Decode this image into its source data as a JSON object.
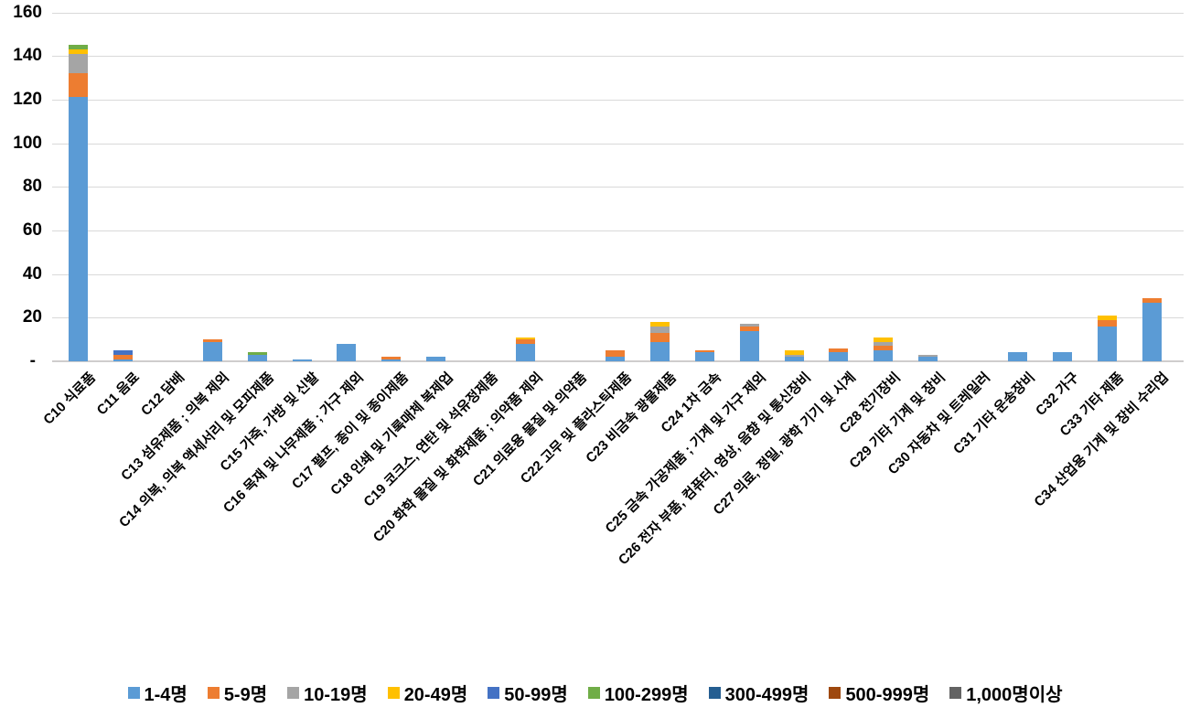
{
  "chart_data": {
    "type": "bar",
    "stacked": true,
    "title": "",
    "xlabel": "",
    "ylabel": "",
    "ylim": [
      0,
      160
    ],
    "grid": true,
    "legend_position": "bottom",
    "background_color": "#FFFFFF",
    "gridline_color": "#D9D9D9",
    "y_axis_ticks": [
      {
        "label": "160",
        "value": 160
      },
      {
        "label": "140",
        "value": 140
      },
      {
        "label": "120",
        "value": 120
      },
      {
        "label": "100",
        "value": 100
      },
      {
        "label": "80",
        "value": 80
      },
      {
        "label": "60",
        "value": 60
      },
      {
        "label": "40",
        "value": 40
      },
      {
        "label": "20",
        "value": 20
      },
      {
        "label": "-",
        "value": 0
      }
    ],
    "categories": [
      "C10 식료품",
      "C11 음료",
      "C12 담배",
      "C13 섬유제품 ; 의복 제외",
      "C14 의복, 의복 액세서리 및 모피제품",
      "C15 가죽, 가방 및 신발",
      "C16 목재 및 나무제품 ; 가구 제외",
      "C17 펄프, 종이 및 종이제품",
      "C18 인쇄 및 기록매체 복제업",
      "C19 코크스, 연탄 및 석유정제품",
      "C20 화학 물질 및 화학제품 ; 의약품 제외",
      "C21 의료용 물질 및 의약품",
      "C22 고무 및 플라스틱제품",
      "C23 비금속 광물제품",
      "C24 1차 금속",
      "C25 금속 가공제품 ; 기계 및 가구 제외",
      "C26 전자 부품, 컴퓨터, 영상, 음향 및 통신장비",
      "C27 의료, 정밀, 광학 기기 및 시계",
      "C28 전기장비",
      "C29 기타 기계 및 장비",
      "C30 자동차 및 트레일러",
      "C31 기타 운송장비",
      "C32 가구",
      "C33 기타 제품",
      "C34 산업용 기계 및 장비 수리업"
    ],
    "series": [
      {
        "name": "1-4명",
        "color": "#5B9BD5",
        "values": [
          121,
          1,
          0,
          9,
          3,
          1,
          8,
          1,
          2,
          0,
          8,
          0,
          2,
          9,
          4,
          14,
          2,
          4,
          5,
          2,
          0,
          4,
          4,
          16,
          27
        ]
      },
      {
        "name": "5-9명",
        "color": "#ED7D31",
        "values": [
          11,
          2,
          0,
          1,
          0,
          0,
          0,
          1,
          0,
          0,
          2,
          0,
          3,
          4,
          1,
          2,
          0,
          2,
          2,
          0,
          0,
          0,
          0,
          3,
          2
        ]
      },
      {
        "name": "10-19명",
        "color": "#A5A5A5",
        "values": [
          9,
          0,
          0,
          0,
          0,
          0,
          0,
          0,
          0,
          0,
          0,
          0,
          0,
          3,
          0,
          1,
          1,
          0,
          2,
          1,
          0,
          0,
          0,
          0,
          0
        ]
      },
      {
        "name": "20-49명",
        "color": "#FFC000",
        "values": [
          2,
          0,
          0,
          0,
          0,
          0,
          0,
          0,
          0,
          0,
          1,
          0,
          0,
          2,
          0,
          0,
          2,
          0,
          2,
          0,
          0,
          0,
          0,
          2,
          0
        ]
      },
      {
        "name": "50-99명",
        "color": "#4472C4",
        "values": [
          0,
          2,
          0,
          0,
          0,
          0,
          0,
          0,
          0,
          0,
          0,
          0,
          0,
          0,
          0,
          0,
          0,
          0,
          0,
          0,
          0,
          0,
          0,
          0,
          0
        ]
      },
      {
        "name": "100-299명",
        "color": "#70AD47",
        "values": [
          2,
          0,
          0,
          0,
          1,
          0,
          0,
          0,
          0,
          0,
          0,
          0,
          0,
          0,
          0,
          0,
          0,
          0,
          0,
          0,
          0,
          0,
          0,
          0,
          0
        ]
      },
      {
        "name": "300-499명",
        "color": "#255E91",
        "values": [
          0,
          0,
          0,
          0,
          0,
          0,
          0,
          0,
          0,
          0,
          0,
          0,
          0,
          0,
          0,
          0,
          0,
          0,
          0,
          0,
          0,
          0,
          0,
          0,
          0
        ]
      },
      {
        "name": "500-999명",
        "color": "#9E480E",
        "values": [
          0,
          0,
          0,
          0,
          0,
          0,
          0,
          0,
          0,
          0,
          0,
          0,
          0,
          0,
          0,
          0,
          0,
          0,
          0,
          0,
          0,
          0,
          0,
          0,
          0
        ]
      },
      {
        "name": "1,000명이상",
        "color": "#636363",
        "values": [
          0,
          0,
          0,
          0,
          0,
          0,
          0,
          0,
          0,
          0,
          0,
          0,
          0,
          0,
          0,
          0,
          0,
          0,
          0,
          0,
          0,
          0,
          0,
          0,
          0
        ]
      }
    ]
  }
}
